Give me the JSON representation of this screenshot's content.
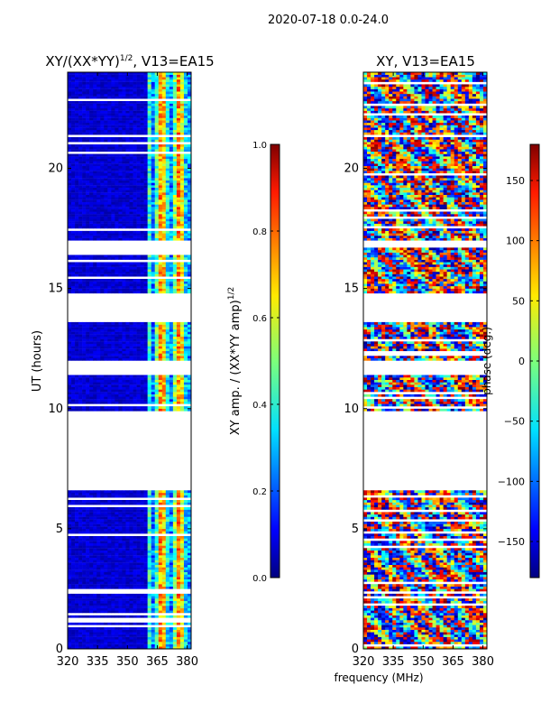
{
  "figure_title": "2020-07-18 0.0-24.0",
  "chart_data": [
    {
      "type": "heatmap",
      "title_main": "XY/(XX*YY)",
      "title_sup": "1/2",
      "title_rest": ", V13=EA15",
      "xlabel": "",
      "ylabel": "UT (hours)",
      "xlim": [
        320,
        382
      ],
      "ylim": [
        0,
        24
      ],
      "xticks": [
        "320",
        "335",
        "350",
        "365",
        "380"
      ],
      "yticks": [
        "0",
        "5",
        "10",
        "15",
        "20"
      ],
      "gaps_hours": [
        [
          6.6,
          9.9
        ],
        [
          11.4,
          12.0
        ],
        [
          13.6,
          14.8
        ],
        [
          16.7,
          17.0
        ]
      ],
      "colorbar": {
        "label_main": "XY amp. / (XX*YY amp)",
        "label_sup": "1/2",
        "range": [
          0.0,
          1.0
        ],
        "ticks": [
          "0.0",
          "0.2",
          "0.4",
          "0.6",
          "0.8",
          "1.0"
        ]
      }
    },
    {
      "type": "heatmap",
      "title_main": "XY, V13=EA15",
      "xlabel": "frequency (MHz)",
      "ylabel": "",
      "xlim": [
        320,
        382
      ],
      "ylim": [
        0,
        24
      ],
      "xticks": [
        "320",
        "335",
        "350",
        "365",
        "380"
      ],
      "yticks": [
        "0",
        "5",
        "10",
        "15",
        "20"
      ],
      "gaps_hours": [
        [
          6.6,
          9.9
        ],
        [
          11.4,
          12.0
        ],
        [
          13.6,
          14.8
        ],
        [
          16.7,
          17.0
        ]
      ],
      "colorbar": {
        "label": "phase (deg.)",
        "range": [
          -180,
          180
        ],
        "ticks": [
          "−150",
          "−100",
          "−50",
          "0",
          "50",
          "100",
          "150"
        ]
      }
    }
  ]
}
